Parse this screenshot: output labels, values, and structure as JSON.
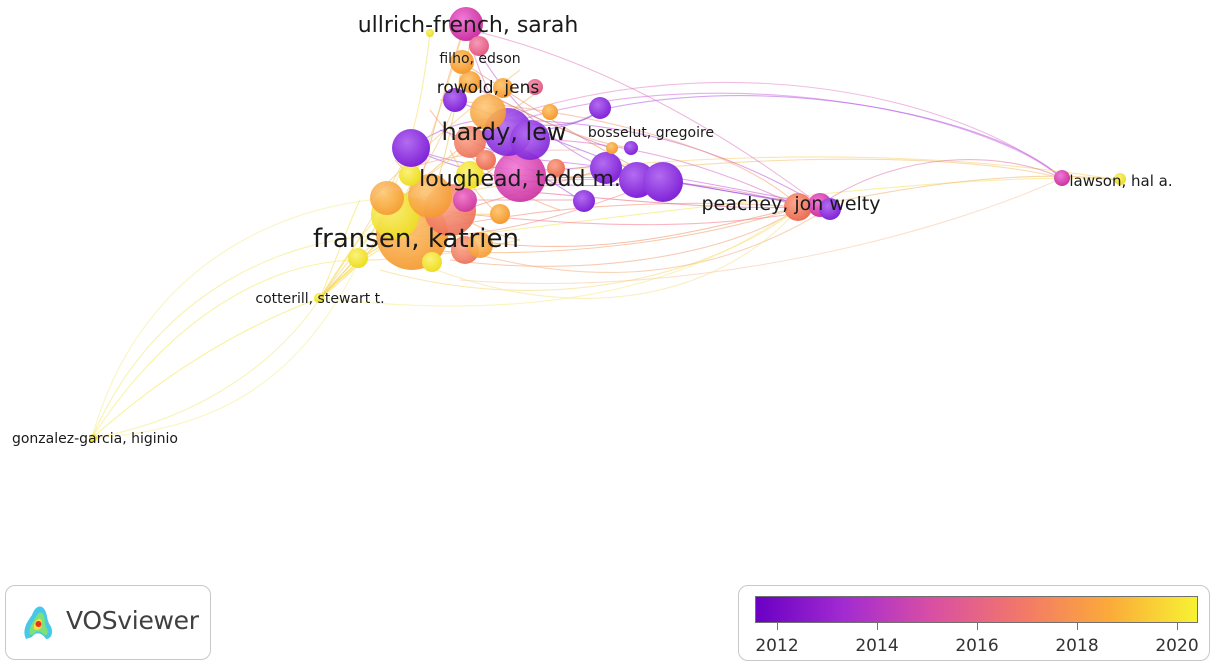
{
  "labels": {
    "ullrich_french": "ullrich-french, sarah",
    "filho": "filho, edson",
    "rowold": "rowold, jens",
    "hardy": "hardy, lew",
    "bosselut": "bosselut, gregoire",
    "loughead": "loughead, todd m.",
    "peachey": "peachey, jon welty",
    "lawson": "lawson, hal a.",
    "fransen": "fransen, katrien",
    "cotterill": "cotterill, stewart t.",
    "gonzalez_garcia": "gonzalez-garcia, higinio"
  },
  "logo": {
    "text": "VOSviewer"
  },
  "legend": {
    "ticks": [
      "2012",
      "2014",
      "2016",
      "2018",
      "2020"
    ],
    "colors": [
      "#6a00c4",
      "#a22bd1",
      "#d94fa3",
      "#f2776a",
      "#fbaa3a",
      "#f8f232"
    ]
  },
  "colors": {
    "purple": "#8a2be2",
    "magenta": "#d63fb0",
    "pink": "#e8609a",
    "salmon": "#f07a6e",
    "orange": "#f9a440",
    "yellow": "#f3e830"
  }
}
